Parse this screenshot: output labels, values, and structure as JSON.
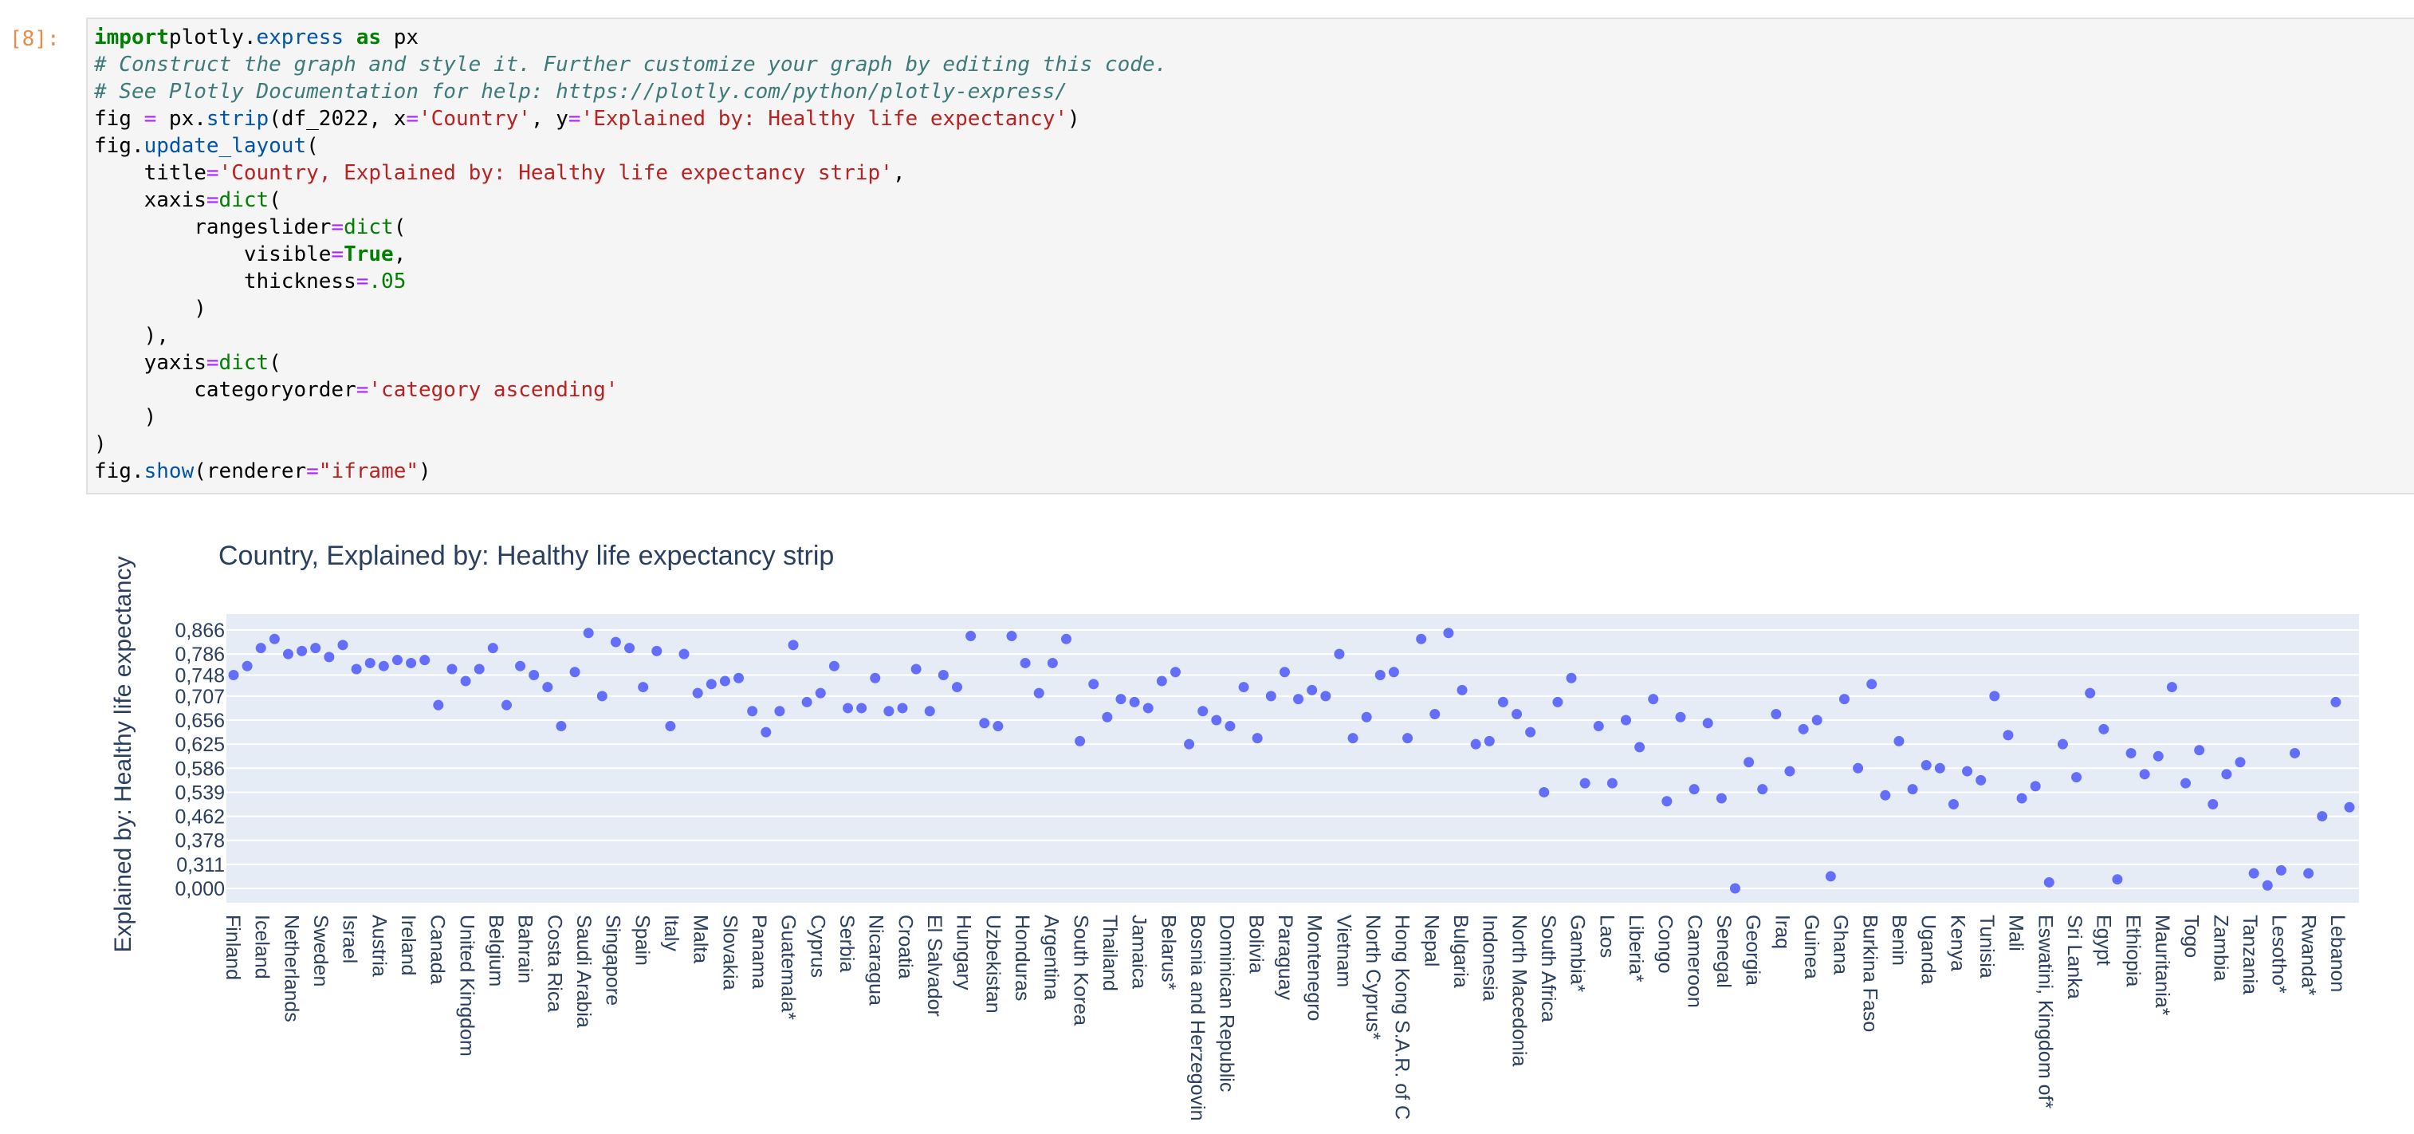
{
  "notebook": {
    "prompt": "[8]:",
    "code_lines": [
      [
        [
          "kw",
          "import"
        ],
        [
          "",
          "plotly."
        ],
        [
          "fn",
          "express"
        ],
        [
          "",
          ""
        ],
        [
          "kw",
          " as"
        ],
        [
          "",
          " px"
        ]
      ],
      [
        [
          "cm",
          "# Construct the graph and style it. Further customize your graph by editing this code."
        ]
      ],
      [
        [
          "cm",
          "# See Plotly Documentation for help: https://plotly.com/python/plotly-express/"
        ]
      ],
      [
        [
          "",
          "fig "
        ],
        [
          "op",
          "="
        ],
        [
          "",
          " px."
        ],
        [
          "fn",
          "strip"
        ],
        [
          "",
          "(df_2022, x"
        ],
        [
          "op",
          "="
        ],
        [
          "st",
          "'Country'"
        ],
        [
          "",
          ", y"
        ],
        [
          "op",
          "="
        ],
        [
          "st",
          "'Explained by: Healthy life expectancy'"
        ],
        [
          "",
          ")"
        ]
      ],
      [
        [
          "",
          "fig."
        ],
        [
          "fn",
          "update_layout"
        ],
        [
          "",
          "("
        ]
      ],
      [
        [
          "",
          "    title"
        ],
        [
          "op",
          "="
        ],
        [
          "st",
          "'Country, Explained by: Healthy life expectancy strip'"
        ],
        [
          "",
          ","
        ]
      ],
      [
        [
          "",
          "    xaxis"
        ],
        [
          "op",
          "="
        ],
        [
          "nm",
          "dict"
        ],
        [
          "",
          "("
        ]
      ],
      [
        [
          "",
          "        rangeslider"
        ],
        [
          "op",
          "="
        ],
        [
          "nm",
          "dict"
        ],
        [
          "",
          "("
        ]
      ],
      [
        [
          "",
          "            visible"
        ],
        [
          "op",
          "="
        ],
        [
          "kw",
          "True"
        ],
        [
          "",
          ","
        ]
      ],
      [
        [
          "",
          "            thickness"
        ],
        [
          "op",
          "="
        ],
        [
          "nm",
          ".05"
        ]
      ],
      [
        [
          "",
          "        )"
        ]
      ],
      [
        [
          "",
          "    ),"
        ]
      ],
      [
        [
          "",
          "    yaxis"
        ],
        [
          "op",
          "="
        ],
        [
          "nm",
          "dict"
        ],
        [
          "",
          "("
        ]
      ],
      [
        [
          "",
          "        categoryorder"
        ],
        [
          "op",
          "="
        ],
        [
          "st",
          "'category ascending'"
        ]
      ],
      [
        [
          "",
          "    )"
        ]
      ],
      [
        [
          "",
          ")"
        ]
      ],
      [
        [
          "",
          "fig."
        ],
        [
          "fn",
          "show"
        ],
        [
          "",
          "(renderer"
        ],
        [
          "op",
          "="
        ],
        [
          "st",
          "\"iframe\""
        ],
        [
          "",
          ")"
        ]
      ]
    ]
  },
  "chart_data": {
    "type": "scatter",
    "title": "Country, Explained by: Healthy life expectancy strip",
    "xlabel": "Country",
    "ylabel": "Explained by: Healthy life expectancy",
    "y_category_ticks": [
      "0,000",
      "0,311",
      "0,378",
      "0,462",
      "0,539",
      "0,586",
      "0,625",
      "0,656",
      "0,707",
      "0,748",
      "0,786",
      "0,866"
    ],
    "marker_color": "#636efa",
    "x_tick_labels": [
      "Finland",
      "Iceland",
      "Netherlands",
      "Sweden",
      "Israel",
      "Austria",
      "Ireland",
      "Canada",
      "United Kingdom",
      "Belgium",
      "Bahrain",
      "Costa Rica",
      "Saudi Arabia",
      "Singapore",
      "Spain",
      "Italy",
      "Malta",
      "Slovakia",
      "Panama",
      "Guatemala*",
      "Cyprus",
      "Serbia",
      "Nicaragua",
      "Croatia",
      "El Salvador",
      "Hungary",
      "Uzbekistan",
      "Honduras",
      "Argentina",
      "South Korea",
      "Thailand",
      "Jamaica",
      "Belarus*",
      "Bosnia and Herzegovin",
      "Dominican Republic",
      "Bolivia",
      "Paraguay",
      "Montenegro",
      "Vietnam",
      "North Cyprus*",
      "Hong Kong S.A.R. of C",
      "Nepal",
      "Bulgaria",
      "Indonesia",
      "North Macedonia",
      "South Africa",
      "Gambia*",
      "Laos",
      "Liberia*",
      "Congo",
      "Cameroon",
      "Senegal",
      "Georgia",
      "Iraq",
      "Guinea",
      "Ghana",
      "Burkina Faso",
      "Benin",
      "Uganda",
      "Kenya",
      "Tunisia",
      "Mali",
      "Eswatini, Kingdom of*",
      "Sri Lanka",
      "Egypt",
      "Ethiopia",
      "Mauritania*",
      "Togo",
      "Zambia",
      "Tanzania",
      "Lesotho*",
      "Rwanda*",
      "Lebanon"
    ],
    "y_ranks": [
      72,
      75,
      81,
      84,
      79,
      80,
      81,
      78,
      82,
      74,
      76,
      75,
      77,
      76,
      77,
      62,
      74,
      70,
      74,
      81,
      62,
      75,
      72,
      68,
      55,
      73,
      86,
      65,
      83,
      81,
      68,
      80,
      55,
      79,
      66,
      69,
      70,
      71,
      60,
      53,
      60,
      82,
      63,
      66,
      75,
      61,
      61,
      71,
      60,
      61,
      74,
      60,
      72,
      68,
      85,
      56,
      55,
      85,
      76,
      66,
      76,
      84,
      50,
      69,
      58,
      64,
      63,
      61,
      70,
      73,
      49,
      60,
      57,
      55,
      68,
      51,
      65,
      73,
      64,
      67,
      65,
      79,
      51,
      58,
      72,
      73,
      51,
      84,
      59,
      86,
      67,
      49,
      50,
      63,
      59,
      53,
      33,
      63,
      71,
      36,
      55,
      36,
      57,
      48,
      64,
      30,
      58,
      34,
      56,
      31,
      1,
      43,
      34,
      59,
      40,
      54,
      57,
      5,
      64,
      41,
      69,
      32,
      50,
      34,
      42,
      41,
      29,
      40,
      37,
      65,
      52,
      31,
      35,
      3,
      49,
      38,
      66,
      54,
      4,
      46,
      39,
      45,
      68,
      36,
      47,
      29,
      39,
      43,
      6,
      2,
      7,
      46,
      6,
      25,
      63,
      28
    ],
    "note": "The y axis is categorical: each point's value string is a category; only every ~14th category label is drawn by plotly. y_ranks give each point's category position (1 = bottom, 87 = top). 157 points shown."
  }
}
